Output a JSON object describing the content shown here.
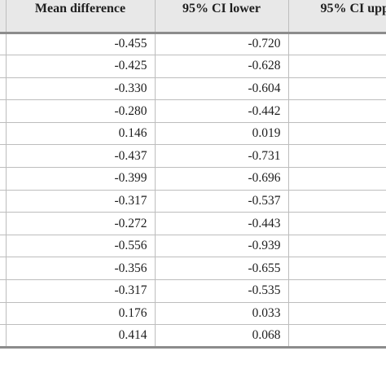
{
  "table": {
    "columns": [
      "",
      "Mean difference",
      "95% CI lower",
      "95% CI upp"
    ],
    "rows": [
      {
        "mean_difference": "-0.455",
        "ci_lower": "-0.720",
        "ci_upper": "-"
      },
      {
        "mean_difference": "-0.425",
        "ci_lower": "-0.628",
        "ci_upper": "-"
      },
      {
        "mean_difference": "-0.330",
        "ci_lower": "-0.604",
        "ci_upper": "-"
      },
      {
        "mean_difference": "-0.280",
        "ci_lower": "-0.442",
        "ci_upper": "-"
      },
      {
        "mean_difference": "0.146",
        "ci_lower": "0.019",
        "ci_upper": ""
      },
      {
        "mean_difference": "-0.437",
        "ci_lower": "-0.731",
        "ci_upper": "-"
      },
      {
        "mean_difference": "-0.399",
        "ci_lower": "-0.696",
        "ci_upper": "-"
      },
      {
        "mean_difference": "-0.317",
        "ci_lower": "-0.537",
        "ci_upper": "-"
      },
      {
        "mean_difference": "-0.272",
        "ci_lower": "-0.443",
        "ci_upper": "-"
      },
      {
        "mean_difference": "-0.556",
        "ci_lower": "-0.939",
        "ci_upper": "-"
      },
      {
        "mean_difference": "-0.356",
        "ci_lower": "-0.655",
        "ci_upper": "-"
      },
      {
        "mean_difference": "-0.317",
        "ci_lower": "-0.535",
        "ci_upper": "-"
      },
      {
        "mean_difference": "0.176",
        "ci_lower": "0.033",
        "ci_upper": ""
      },
      {
        "mean_difference": "0.414",
        "ci_lower": "0.068",
        "ci_upper": ""
      }
    ]
  },
  "colors": {
    "header_background": "#e8e8e8",
    "text": "#1e1e1e",
    "rule": "#8c8c8c",
    "grid": "#bdbdbd"
  }
}
